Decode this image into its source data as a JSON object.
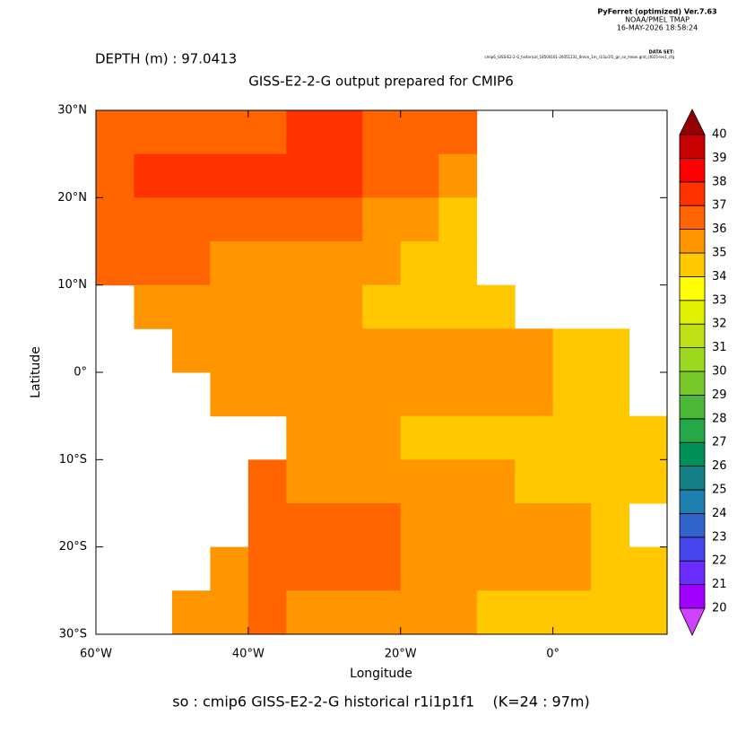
{
  "chart_data": {
    "type": "heatmap",
    "header": [
      "PyFerret (optimized) Ver.7.63",
      "NOAA/PMEL TMAP",
      "16-MAY-2026 18:58:24"
    ],
    "dataset_label": "DATA SET:",
    "dataset": "cmip6_GISS-E2-2-G_historical_18500101-20051231_0mon_1m_r1i1p1f1_gn_so_mean.grid_ct025-lev1_cfg",
    "depth": "DEPTH (m) : 97.0413",
    "title": "GISS-E2-2-G output prepared for CMIP6",
    "xlabel": "Longitude",
    "ylabel": "Latitude",
    "caption": "so : cmip6 GISS-E2-2-G historical r1i1p1f1    (K=24 : 97m)",
    "xlim": [
      -60,
      15
    ],
    "ylim": [
      -30,
      30
    ],
    "xticks": [
      {
        "value": -60,
        "label": "60°W"
      },
      {
        "value": -40,
        "label": "40°W"
      },
      {
        "value": -20,
        "label": "20°W"
      },
      {
        "value": 0,
        "label": "0°"
      }
    ],
    "yticks": [
      {
        "value": 30,
        "label": "30°N"
      },
      {
        "value": 20,
        "label": "20°N"
      },
      {
        "value": 10,
        "label": "10°N"
      },
      {
        "value": 0,
        "label": "0°"
      },
      {
        "value": -10,
        "label": "10°S"
      },
      {
        "value": -20,
        "label": "20°S"
      },
      {
        "value": -30,
        "label": "30°S"
      }
    ],
    "x": [
      -57.5,
      -52.5,
      -47.5,
      -42.5,
      -37.5,
      -32.5,
      -27.5,
      -22.5,
      -17.5,
      -12.5,
      -7.5,
      -2.5,
      2.5,
      7.5,
      12.5
    ],
    "y": [
      27.5,
      22.5,
      17.5,
      12.5,
      7.5,
      2.5,
      -2.5,
      -7.5,
      -12.5,
      -17.5,
      -22.5,
      -27.5
    ],
    "z": [
      [
        36.5,
        36.5,
        36.5,
        36.5,
        36.5,
        37.5,
        37.5,
        36.5,
        36.5,
        36.5,
        null,
        null,
        null,
        null,
        null
      ],
      [
        36.5,
        37.5,
        37.5,
        37.5,
        37.5,
        37.5,
        37.5,
        36.5,
        36.5,
        35.5,
        null,
        null,
        null,
        null,
        null
      ],
      [
        36.5,
        36.5,
        36.5,
        36.5,
        36.5,
        36.5,
        36.5,
        35.5,
        35.5,
        34.5,
        null,
        null,
        null,
        null,
        null
      ],
      [
        36.5,
        36.5,
        36.5,
        35.5,
        35.5,
        35.5,
        35.5,
        35.5,
        34.5,
        34.5,
        null,
        null,
        null,
        null,
        null
      ],
      [
        null,
        35.5,
        35.5,
        35.5,
        35.5,
        35.5,
        35.5,
        34.5,
        34.5,
        34.5,
        34.5,
        null,
        null,
        null,
        null
      ],
      [
        null,
        null,
        35.5,
        35.5,
        35.5,
        35.5,
        35.5,
        35.5,
        35.5,
        35.5,
        35.5,
        35.5,
        34.5,
        34.5,
        null
      ],
      [
        null,
        null,
        null,
        35.5,
        35.5,
        35.5,
        35.5,
        35.5,
        35.5,
        35.5,
        35.5,
        35.5,
        34.5,
        34.5,
        null
      ],
      [
        null,
        null,
        null,
        null,
        null,
        35.5,
        35.5,
        35.5,
        34.5,
        34.5,
        34.5,
        34.5,
        34.5,
        34.5,
        34.5
      ],
      [
        null,
        null,
        null,
        null,
        36.5,
        35.5,
        35.5,
        35.5,
        35.5,
        35.5,
        35.5,
        34.5,
        34.5,
        34.5,
        34.5
      ],
      [
        null,
        null,
        null,
        null,
        36.5,
        36.5,
        36.5,
        36.5,
        35.5,
        35.5,
        35.5,
        35.5,
        35.5,
        34.5,
        null
      ],
      [
        null,
        null,
        null,
        35.5,
        36.5,
        36.5,
        36.5,
        36.5,
        35.5,
        35.5,
        35.5,
        35.5,
        35.5,
        34.5,
        34.5
      ],
      [
        null,
        null,
        35.5,
        35.5,
        36.5,
        35.5,
        35.5,
        35.5,
        35.5,
        35.5,
        34.5,
        34.5,
        34.5,
        34.5,
        34.5
      ]
    ],
    "levels": [
      20,
      21,
      22,
      23,
      24,
      25,
      26,
      27,
      28,
      29,
      30,
      31,
      32,
      33,
      34,
      35,
      36,
      37,
      38,
      39,
      40
    ],
    "colors": [
      "#a000ff",
      "#6a2cff",
      "#4646ee",
      "#3364cc",
      "#1f7fae",
      "#167f86",
      "#00915a",
      "#24a848",
      "#4cb83a",
      "#79c82a",
      "#9cd81e",
      "#bee014",
      "#dff000",
      "#ffff00",
      "#ffc800",
      "#ff9600",
      "#ff6400",
      "#ff3200",
      "#ff0000",
      "#c80000"
    ],
    "under_color": "#d040ff",
    "over_color": "#960000"
  }
}
